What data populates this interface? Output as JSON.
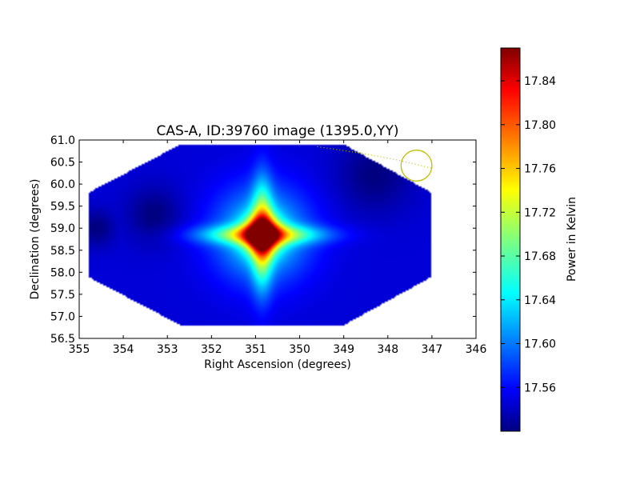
{
  "chart_data": {
    "type": "heatmap",
    "title": "CAS-A, ID:39760 image (1395.0,YY)",
    "xlabel": "Right Ascension (degrees)",
    "ylabel": "Declination (degrees)",
    "xlim": [
      355,
      346
    ],
    "ylim": [
      56.5,
      61.0
    ],
    "xticks": [
      "355",
      "354",
      "353",
      "352",
      "351",
      "350",
      "349",
      "348",
      "347",
      "346"
    ],
    "yticks": [
      "56.5",
      "57.0",
      "57.5",
      "58.0",
      "58.5",
      "59.0",
      "59.5",
      "60.0",
      "60.5",
      "61.0"
    ],
    "map_footprint_radec": [
      [
        354.8,
        59.8
      ],
      [
        352.7,
        60.9
      ],
      [
        349.0,
        60.9
      ],
      [
        347.0,
        59.8
      ],
      [
        347.0,
        57.9
      ],
      [
        349.0,
        56.8
      ],
      [
        352.7,
        56.8
      ],
      [
        354.8,
        57.9
      ]
    ],
    "peak": {
      "ra": 350.85,
      "dec": 58.85,
      "value": 17.87
    },
    "background_level": 17.55,
    "off_source_level": 17.52,
    "beam_circle": {
      "ra": 347.35,
      "dec": 60.42,
      "radius_deg": 0.35
    },
    "beam_track": [
      [
        349.6,
        60.85
      ],
      [
        348.6,
        60.7
      ],
      [
        347.8,
        60.55
      ],
      [
        347.0,
        60.36
      ]
    ],
    "colorbar": {
      "label": "Power in Kelvin",
      "range": [
        17.52,
        17.87
      ],
      "ticks": [
        "17.56",
        "17.60",
        "17.64",
        "17.68",
        "17.72",
        "17.76",
        "17.80",
        "17.84"
      ],
      "colormap": "jet"
    }
  }
}
